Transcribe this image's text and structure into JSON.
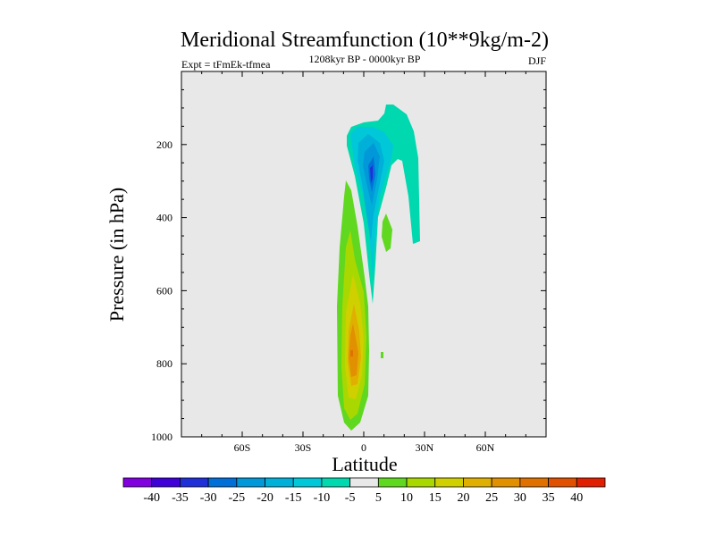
{
  "chart_data": {
    "type": "contour",
    "title": "Meridional Streamfunction (10**9kg/m-2)",
    "subtitle_left": "Expt = tFmEk-tfmea",
    "subtitle_center": "1208kyr BP - 0000kyr BP",
    "subtitle_right": "DJF",
    "xlabel": "Latitude",
    "ylabel": "Pressure (in hPa)",
    "xlim": [
      -90,
      90
    ],
    "ylim": [
      1000,
      0
    ],
    "x_ticks": [
      {
        "value": -60,
        "label": "60S"
      },
      {
        "value": -30,
        "label": "30S"
      },
      {
        "value": 0,
        "label": "0"
      },
      {
        "value": 30,
        "label": "30N"
      },
      {
        "value": 60,
        "label": "60N"
      }
    ],
    "y_ticks": [
      {
        "value": 200,
        "label": "200"
      },
      {
        "value": 400,
        "label": "400"
      },
      {
        "value": 600,
        "label": "600"
      },
      {
        "value": 800,
        "label": "800"
      },
      {
        "value": 1000,
        "label": "1000"
      }
    ],
    "colorbar_labels": [
      "-40",
      "-35",
      "-30",
      "-25",
      "-20",
      "-15",
      "-10",
      "-5",
      "5",
      "10",
      "15",
      "20",
      "25",
      "30",
      "35",
      "40"
    ],
    "colorbar_colors": [
      "#8000e0",
      "#4000d8",
      "#2030d8",
      "#0070d8",
      "#0098d8",
      "#00b0d8",
      "#00c8d8",
      "#00d8b0",
      "#e8e8e8",
      "#60d820",
      "#a8d800",
      "#d0d000",
      "#e0b000",
      "#e09000",
      "#e07000",
      "#e05000",
      "#e02000"
    ],
    "background_color": "#e8e8e8",
    "features": [
      {
        "name": "negative cell (upper troposphere, ~0-20N)",
        "min_level": -30,
        "pressure_range_hPa": [
          100,
          650
        ]
      },
      {
        "name": "positive cell (lower troposphere, ~10S-5N)",
        "max_level": 30,
        "pressure_range_hPa": [
          300,
          980
        ]
      }
    ]
  }
}
